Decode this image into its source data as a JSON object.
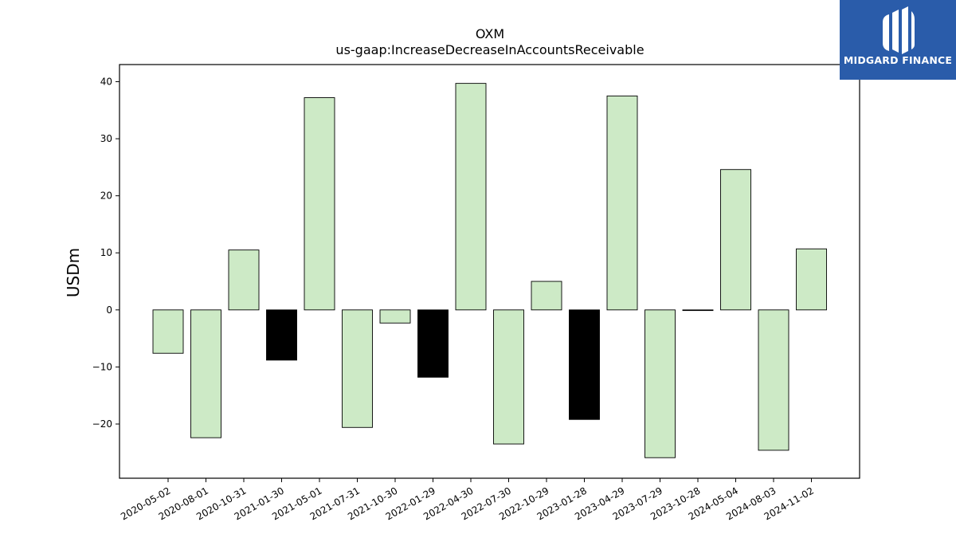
{
  "chart_data": {
    "type": "bar",
    "title": "OXM",
    "subtitle": "us-gaap:IncreaseDecreaseInAccountsReceivable",
    "xlabel": "",
    "ylabel": "USDm",
    "ylim": [
      -29.5,
      43
    ],
    "yticks": [
      40,
      30,
      20,
      10,
      0,
      -10,
      -20
    ],
    "ytick_labels": [
      "40",
      "30",
      "20",
      "10",
      "0",
      "−10",
      "−20"
    ],
    "grid": false,
    "categories": [
      "2020-05-02",
      "2020-08-01",
      "2020-10-31",
      "2021-01-30",
      "2021-05-01",
      "2021-07-31",
      "2021-10-30",
      "2022-01-29",
      "2022-04-30",
      "2022-07-30",
      "2022-10-29",
      "2023-01-28",
      "2023-04-29",
      "2023-07-29",
      "2023-10-28",
      "2024-05-04",
      "2024-08-03",
      "2024-11-02"
    ],
    "values": [
      -7.6,
      -22.4,
      10.5,
      -8.8,
      37.2,
      -20.6,
      -2.3,
      -11.8,
      39.7,
      -23.5,
      5.0,
      -19.2,
      37.5,
      -25.9,
      -0.1,
      24.6,
      -24.6,
      10.7
    ],
    "highlight": [
      false,
      false,
      false,
      true,
      false,
      false,
      false,
      true,
      false,
      false,
      false,
      true,
      false,
      false,
      false,
      false,
      false,
      false
    ],
    "colors": {
      "bar": "#cdeac6",
      "highlight": "#000000",
      "edge": "#000000"
    }
  },
  "logo": {
    "text": "MIDGARD FINANCE",
    "background": "#2a5caa"
  }
}
